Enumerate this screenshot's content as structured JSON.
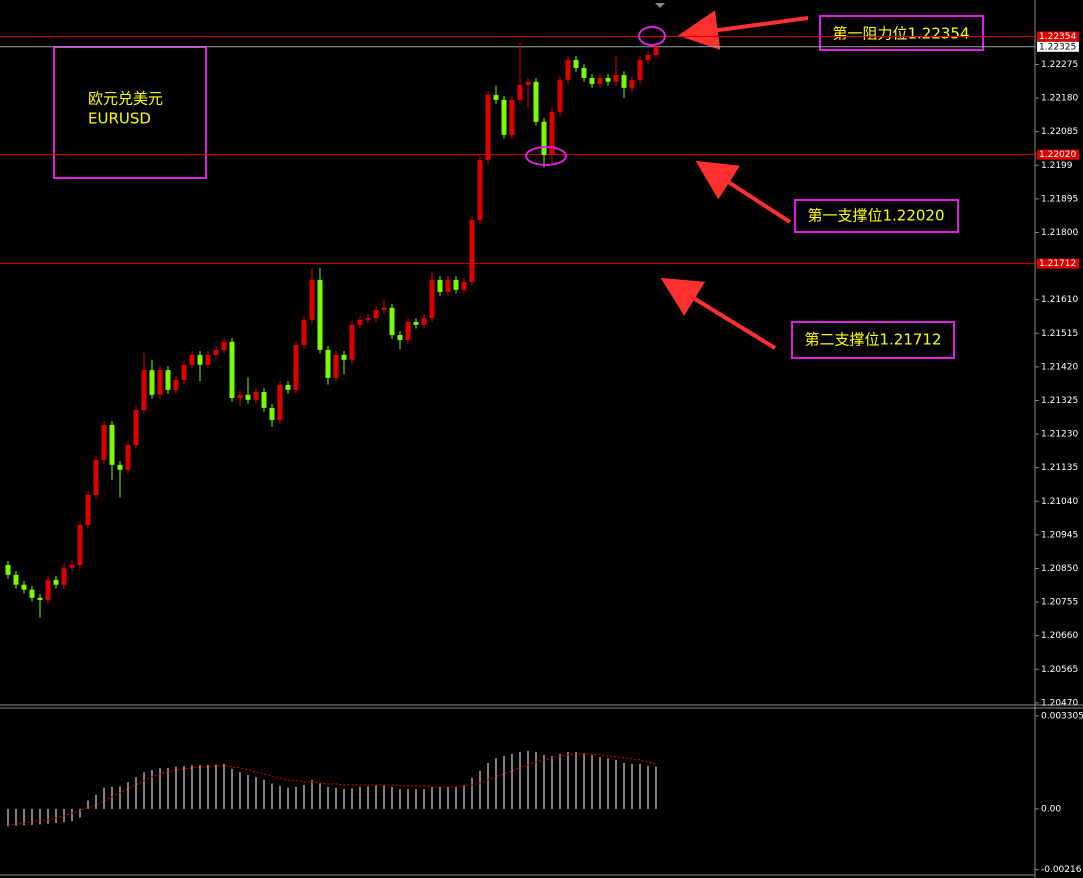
{
  "chart_data": [
    {
      "type": "candlestick",
      "ylim": [
        1.20464,
        1.22446
      ],
      "yticks": [
        1.22275,
        {
          "value": 1.2218,
          "label": "1.22180"
        },
        1.22085,
        1.2199,
        1.21895,
        {
          "value": 1.218,
          "label": "1.21800"
        },
        {
          "value": 1.2161,
          "label": "1.21610"
        },
        1.21515,
        {
          "value": 1.2142,
          "label": "1.21420"
        },
        1.21325,
        {
          "value": 1.2123,
          "label": "1.21230"
        },
        1.21135,
        {
          "value": 1.2104,
          "label": "1.21040"
        },
        1.20945,
        {
          "value": 1.2085,
          "label": "1.20850"
        },
        1.20755,
        {
          "value": 1.2066,
          "label": "1.20660"
        },
        1.20565,
        {
          "value": 1.2047,
          "label": "1.20470"
        }
      ],
      "open": [
        1.2086,
        1.20832,
        1.20804,
        1.2079,
        1.20767,
        1.20761,
        1.20818,
        1.20804,
        1.20852,
        1.2086,
        1.20973,
        1.21058,
        1.21157,
        1.21256,
        1.21143,
        1.21129,
        1.21199,
        1.21298,
        1.21411,
        1.21341,
        1.21411,
        1.21355,
        1.21383,
        1.21426,
        1.21454,
        1.21426,
        1.21454,
        1.21468,
        1.21491,
        1.21332,
        1.21341,
        1.21327,
        1.21349,
        1.21304,
        1.2127,
        1.21369,
        1.21355,
        1.21482,
        1.21553,
        1.21666,
        1.21468,
        1.21389,
        1.21454,
        1.2144,
        1.21539,
        1.21553,
        1.21558,
        1.21581,
        1.21587,
        1.2151,
        1.21496,
        1.21547,
        1.21539,
        1.21558,
        1.21666,
        1.21632,
        1.21666,
        1.21638,
        1.2166,
        1.21835,
        1.22005,
        1.22189,
        1.22175,
        1.22076,
        1.22175,
        1.22217,
        1.22226,
        1.22113,
        1.22019,
        1.22141,
        1.22231,
        1.22288,
        1.22265,
        1.22237,
        1.2222,
        1.22237,
        1.22226,
        1.22245,
        1.22209,
        1.22231,
        1.22288,
        1.22302
      ],
      "high": [
        1.20871,
        1.20843,
        1.20815,
        1.20801,
        1.20778,
        1.20829,
        1.20829,
        1.20863,
        1.20871,
        1.20984,
        1.21069,
        1.21168,
        1.21267,
        1.21267,
        1.21154,
        1.2121,
        1.21309,
        1.2146,
        1.2144,
        1.21422,
        1.21422,
        1.21394,
        1.21437,
        1.21465,
        1.21465,
        1.21465,
        1.21479,
        1.21502,
        1.21502,
        1.21352,
        1.2139,
        1.2136,
        1.2136,
        1.21315,
        1.2138,
        1.2138,
        1.21493,
        1.21564,
        1.217,
        1.217,
        1.21479,
        1.21465,
        1.21465,
        1.2155,
        1.21564,
        1.21569,
        1.21592,
        1.2161,
        1.21598,
        1.21521,
        1.21558,
        1.21558,
        1.21569,
        1.2169,
        1.21677,
        1.21677,
        1.21677,
        1.21671,
        1.21846,
        1.22016,
        1.222,
        1.22215,
        1.22186,
        1.22186,
        1.22336,
        1.22237,
        1.22237,
        1.22124,
        1.22152,
        1.22242,
        1.22299,
        1.22299,
        1.22276,
        1.22248,
        1.22248,
        1.22248,
        1.223,
        1.22256,
        1.22242,
        1.22299,
        1.22313,
        1.22336
      ],
      "low": [
        1.20821,
        1.20793,
        1.20779,
        1.20756,
        1.2071,
        1.2075,
        1.20793,
        1.20793,
        1.20841,
        1.20849,
        1.20962,
        1.21047,
        1.21146,
        1.211,
        1.2105,
        1.21118,
        1.21188,
        1.21287,
        1.2133,
        1.2133,
        1.21344,
        1.21344,
        1.21372,
        1.21415,
        1.2138,
        1.21415,
        1.21443,
        1.21457,
        1.21321,
        1.2131,
        1.21316,
        1.21316,
        1.21293,
        1.2125,
        1.21259,
        1.21344,
        1.21344,
        1.21471,
        1.21542,
        1.21457,
        1.2137,
        1.21378,
        1.214,
        1.21429,
        1.21528,
        1.21542,
        1.21547,
        1.2157,
        1.21499,
        1.2147,
        1.21485,
        1.21528,
        1.21528,
        1.21547,
        1.21621,
        1.21621,
        1.21627,
        1.21627,
        1.21649,
        1.21824,
        1.21994,
        1.22164,
        1.22065,
        1.22065,
        1.22164,
        1.2215,
        1.22102,
        1.21984,
        1.21995,
        1.2213,
        1.2222,
        1.22254,
        1.22226,
        1.22209,
        1.22209,
        1.22215,
        1.22215,
        1.2218,
        1.22198,
        1.2222,
        1.22277,
        1.22291
      ],
      "close": [
        1.20832,
        1.20804,
        1.2079,
        1.20767,
        1.20761,
        1.20818,
        1.20804,
        1.20852,
        1.2086,
        1.20973,
        1.21058,
        1.21157,
        1.21256,
        1.21143,
        1.21129,
        1.21199,
        1.21298,
        1.21411,
        1.21341,
        1.21411,
        1.21355,
        1.21383,
        1.21426,
        1.21454,
        1.21426,
        1.21454,
        1.21468,
        1.21491,
        1.21332,
        1.21341,
        1.21327,
        1.21349,
        1.21304,
        1.2127,
        1.21369,
        1.21355,
        1.21482,
        1.21553,
        1.21666,
        1.21468,
        1.21389,
        1.21454,
        1.2144,
        1.21539,
        1.21553,
        1.21558,
        1.21581,
        1.21587,
        1.2151,
        1.21496,
        1.21547,
        1.21539,
        1.21558,
        1.21666,
        1.21632,
        1.21666,
        1.21638,
        1.2166,
        1.21835,
        1.22005,
        1.22189,
        1.22175,
        1.22076,
        1.22175,
        1.22217,
        1.22226,
        1.22113,
        1.22019,
        1.22141,
        1.22231,
        1.22288,
        1.22265,
        1.22237,
        1.2222,
        1.22237,
        1.22226,
        1.22245,
        1.22209,
        1.22231,
        1.22288,
        1.22302,
        1.22325
      ],
      "up_color": "#e00000",
      "down_color": "#7cfc00",
      "hlines": [
        1.22354,
        {
          "value": 1.2202,
          "label": "1.22020"
        },
        1.21712
      ],
      "hline_color": "#e00000",
      "last_price": 1.22325,
      "last_price_color": "#9aa4b1",
      "annotations": [
        "欧元兑美元",
        "EURUSD",
        "第一阻力位1.22354",
        "第一支撑位1.22020",
        "第二支撑位1.21712"
      ]
    },
    {
      "type": "macd",
      "ylim": [
        -0.00235,
        0.00355
      ],
      "yticks": [
        0.003305,
        {
          "value": 0,
          "label": "0.00"
        },
        -0.00216
      ],
      "histogram": [
        -0.00062,
        -0.0006,
        -0.00058,
        -0.00057,
        -0.00055,
        -0.00053,
        -0.0005,
        -0.00047,
        -0.00044,
        -0.0003,
        0.0003,
        0.0005,
        0.00075,
        0.00078,
        0.0008,
        0.00095,
        0.00113,
        0.0013,
        0.00138,
        0.00145,
        0.00145,
        0.0015,
        0.00152,
        0.00155,
        0.00155,
        0.00156,
        0.00157,
        0.0016,
        0.00142,
        0.0013,
        0.0012,
        0.00113,
        0.00103,
        0.0009,
        0.00082,
        0.00075,
        0.00078,
        0.00085,
        0.00103,
        0.00092,
        0.00078,
        0.00075,
        0.0007,
        0.00073,
        0.00078,
        0.0008,
        0.00085,
        0.00085,
        0.00078,
        0.0007,
        0.0007,
        0.0007,
        0.0007,
        0.00078,
        0.0008,
        0.0008,
        0.0008,
        0.00085,
        0.0011,
        0.00135,
        0.00163,
        0.0018,
        0.00188,
        0.00195,
        0.00202,
        0.00206,
        0.00202,
        0.00192,
        0.00188,
        0.00195,
        0.00202,
        0.00202,
        0.00198,
        0.00192,
        0.00185,
        0.0018,
        0.00174,
        0.00163,
        0.0016,
        0.0016,
        0.00153,
        0.0015
      ],
      "signal": [
        -0.00057,
        -0.00053,
        -0.0005,
        -0.00046,
        -0.00043,
        -0.00039,
        -0.00032,
        -0.00025,
        -0.00014,
        -7e-05,
        4e-05,
        0.00014,
        0.00028,
        0.00043,
        0.00057,
        0.00071,
        0.00085,
        0.001,
        0.00114,
        0.00124,
        0.00131,
        0.00139,
        0.00142,
        0.00146,
        0.00149,
        0.00149,
        0.00153,
        0.00153,
        0.00149,
        0.00146,
        0.00139,
        0.00131,
        0.00124,
        0.00117,
        0.0011,
        0.00103,
        0.001,
        0.00096,
        0.00096,
        0.00092,
        0.00089,
        0.00089,
        0.00085,
        0.00085,
        0.00085,
        0.00085,
        0.00085,
        0.00085,
        0.00085,
        0.00082,
        0.00082,
        0.00082,
        0.00082,
        0.00078,
        0.00078,
        0.00078,
        0.00078,
        0.00082,
        0.00085,
        0.00092,
        0.00103,
        0.00114,
        0.00124,
        0.00135,
        0.00146,
        0.00156,
        0.00167,
        0.00174,
        0.00181,
        0.00188,
        0.00192,
        0.00195,
        0.00195,
        0.00195,
        0.00192,
        0.00188,
        0.00185,
        0.00181,
        0.00178,
        0.00174,
        0.00167,
        0.0016
      ],
      "histogram_color": "#ffffff",
      "signal_color": "#e00000"
    }
  ]
}
